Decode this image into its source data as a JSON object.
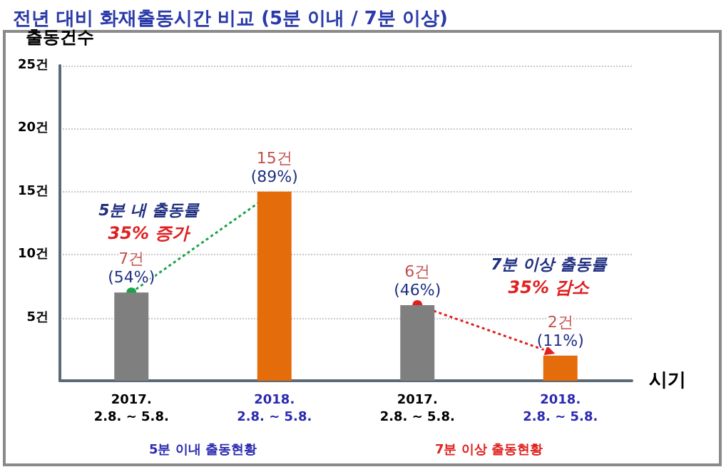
{
  "chart_data": {
    "type": "bar",
    "title": "전년 대비 화재출동시간 비교 (5분 이내 / 7분 이상)",
    "xlabel": "시기",
    "ylabel": "출동건수",
    "categories": [
      "2017.\n2.8. ~ 5.8.",
      "2018.\n2.8. ~ 5.8.",
      "2017.\n2.8. ~ 5.8.",
      "2018.\n2.8. ~ 5.8."
    ],
    "values": [
      7,
      15,
      6,
      2
    ],
    "colors": [
      "#7f7f7f",
      "#e46c0a",
      "#7f7f7f",
      "#e46c0a"
    ],
    "value_labels": [
      "7건\n(54%)",
      "15건\n(89%)",
      "6건\n(46%)",
      "2건\n(11%)"
    ],
    "ylim": [
      0,
      25
    ],
    "yticks": [
      {
        "value": 0,
        "label": null
      },
      {
        "value": 5,
        "label": "5건"
      },
      {
        "value": 10,
        "label": "10건"
      },
      {
        "value": 15,
        "label": "15건"
      },
      {
        "value": 20,
        "label": "20건"
      },
      {
        "value": 25,
        "label": "25건"
      }
    ],
    "grid": "y",
    "annotations": [
      "5분 내 출동률\n35% 증가",
      "7분 이상 출동률\n35% 감소",
      "5분 이내 출동현황",
      "7분 이상 출동현황"
    ]
  }
}
